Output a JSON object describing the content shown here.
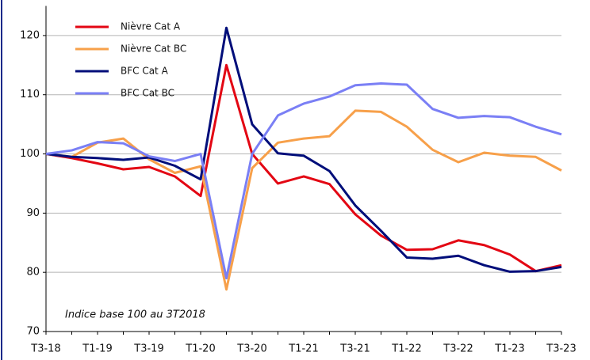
{
  "chart_data": {
    "type": "line",
    "annotation": "Indice base 100 au 3T2018",
    "categories": [
      "T3-18",
      null,
      "T1-19",
      null,
      "T3-19",
      null,
      "T1-20",
      null,
      "T3-20",
      null,
      "T1-21",
      null,
      "T3-21",
      null,
      "T1-22",
      null,
      "T3-22",
      null,
      "T1-23",
      null,
      "T3-23"
    ],
    "series": [
      {
        "name": "Nièvre  Cat A",
        "color": "#e30613",
        "values": [
          100,
          99.3,
          98.4,
          97.4,
          97.8,
          96.2,
          92.9,
          115.0,
          100.0,
          95.0,
          96.2,
          94.9,
          89.8,
          86.2,
          83.8,
          83.9,
          85.4,
          84.6,
          83.0,
          80.2,
          81.2
        ]
      },
      {
        "name": "Nièvre  Cat BC",
        "color": "#f7a04a",
        "values": [
          100,
          99.5,
          101.9,
          102.6,
          99.1,
          96.8,
          97.9,
          77.1,
          97.6,
          101.9,
          102.6,
          103.0,
          107.3,
          107.1,
          104.6,
          100.7,
          98.6,
          100.2,
          99.7,
          99.5,
          97.2
        ]
      },
      {
        "name": "BFC Cat A",
        "color": "#000e7a",
        "values": [
          100,
          99.5,
          99.3,
          99.0,
          99.4,
          98.0,
          95.7,
          121.3,
          105.0,
          100.1,
          99.7,
          97.1,
          91.3,
          87.0,
          82.5,
          82.3,
          82.8,
          81.2,
          80.1,
          80.2,
          80.9
        ]
      },
      {
        "name": "BFC Cat BC",
        "color": "#7a7ff5",
        "values": [
          100,
          100.6,
          102.0,
          101.8,
          99.6,
          98.8,
          100.0,
          79.0,
          100.0,
          106.5,
          108.5,
          109.7,
          111.6,
          111.9,
          111.7,
          107.6,
          106.1,
          106.4,
          106.2,
          104.6,
          103.3
        ]
      }
    ],
    "ylim": [
      70,
      125
    ],
    "yticks": [
      70,
      80,
      90,
      100,
      110,
      120
    ],
    "grid": true
  }
}
